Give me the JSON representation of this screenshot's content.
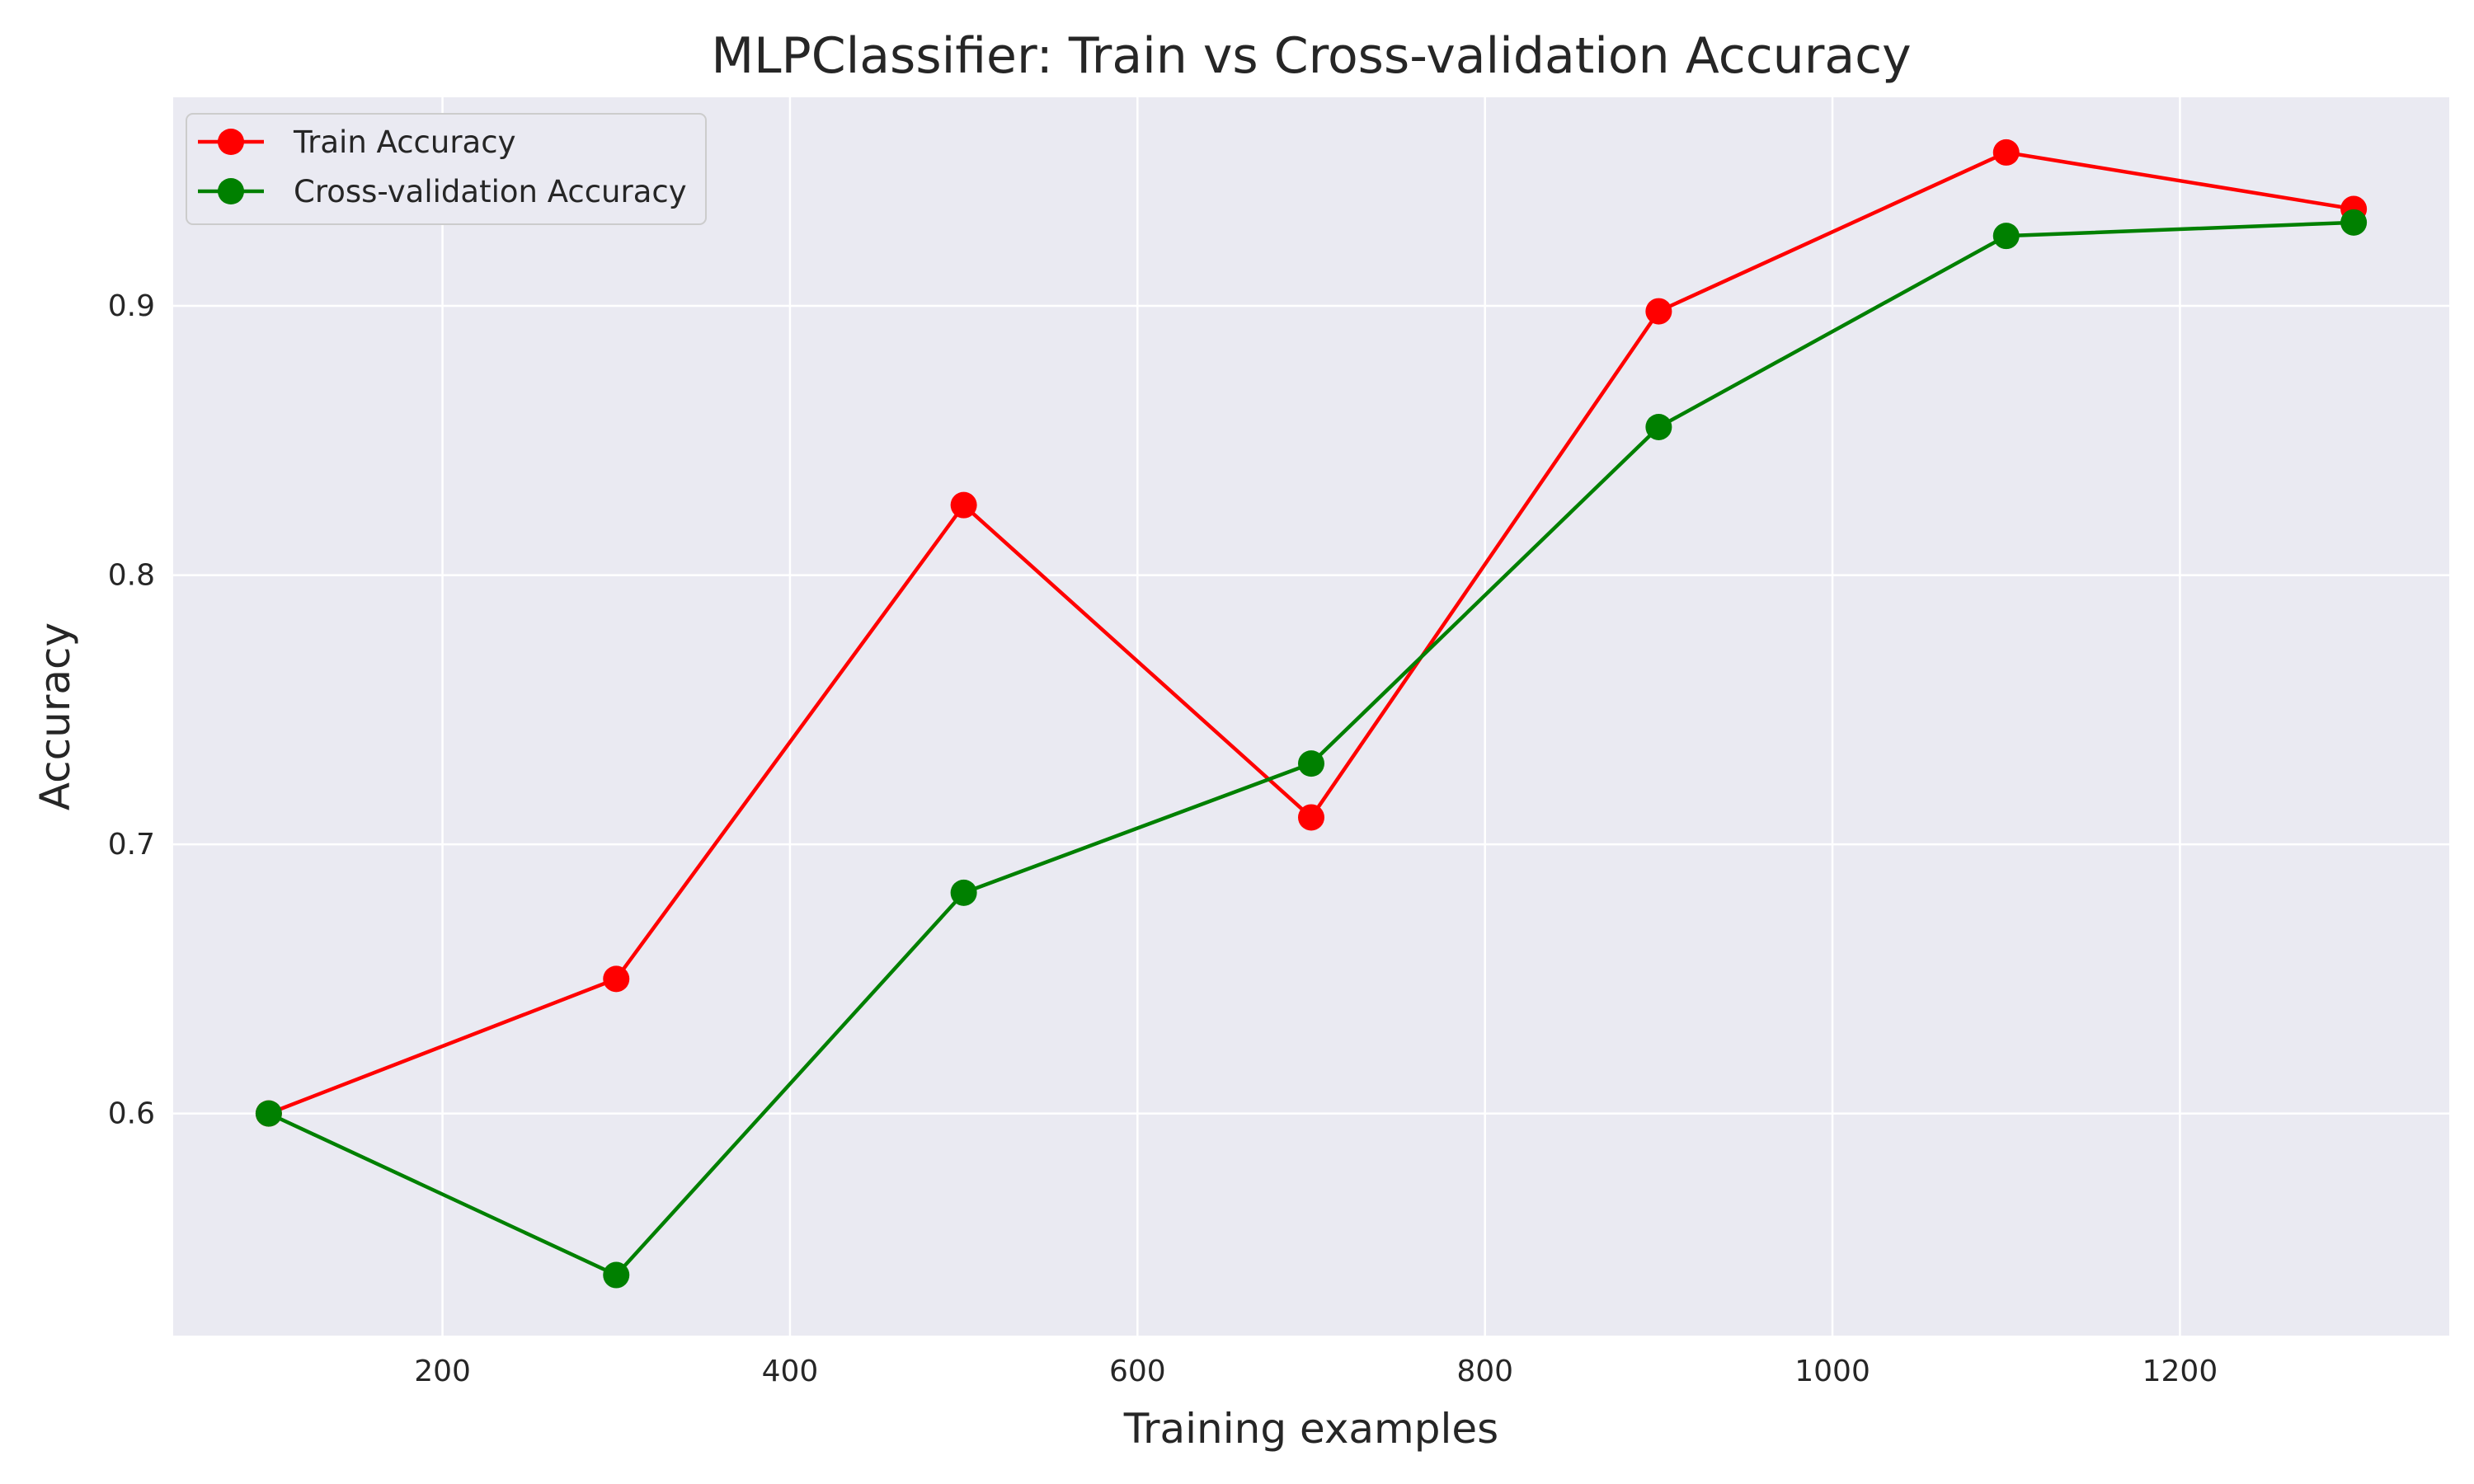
{
  "chart_data": {
    "type": "line",
    "title": "MLPClassifier: Train vs Cross-validation Accuracy",
    "xlabel": "Training examples",
    "ylabel": "Accuracy",
    "x": [
      100,
      300,
      500,
      700,
      900,
      1100,
      1300
    ],
    "xlim": [
      45,
      1355
    ],
    "ylim": [
      0.5175,
      0.9775
    ],
    "xticks": [
      200,
      400,
      600,
      800,
      1000,
      1200
    ],
    "xtick_labels": [
      "200",
      "400",
      "600",
      "800",
      "1000",
      "1200"
    ],
    "yticks": [
      0.6,
      0.7,
      0.8,
      0.9
    ],
    "ytick_labels": [
      "0.6",
      "0.7",
      "0.8",
      "0.9"
    ],
    "grid": true,
    "legend_position": "top-left",
    "series": [
      {
        "name": "Train Accuracy",
        "color": "#ff0000",
        "marker": "circle",
        "values": [
          0.6,
          0.65,
          0.826,
          0.71,
          0.898,
          0.957,
          0.936
        ]
      },
      {
        "name": "Cross-validation Accuracy",
        "color": "#008000",
        "marker": "circle",
        "values": [
          0.6,
          0.54,
          0.682,
          0.73,
          0.855,
          0.926,
          0.931
        ]
      }
    ],
    "colors": {
      "plot_background": "#eaeaf2",
      "grid": "#ffffff",
      "text": "#262626"
    }
  }
}
